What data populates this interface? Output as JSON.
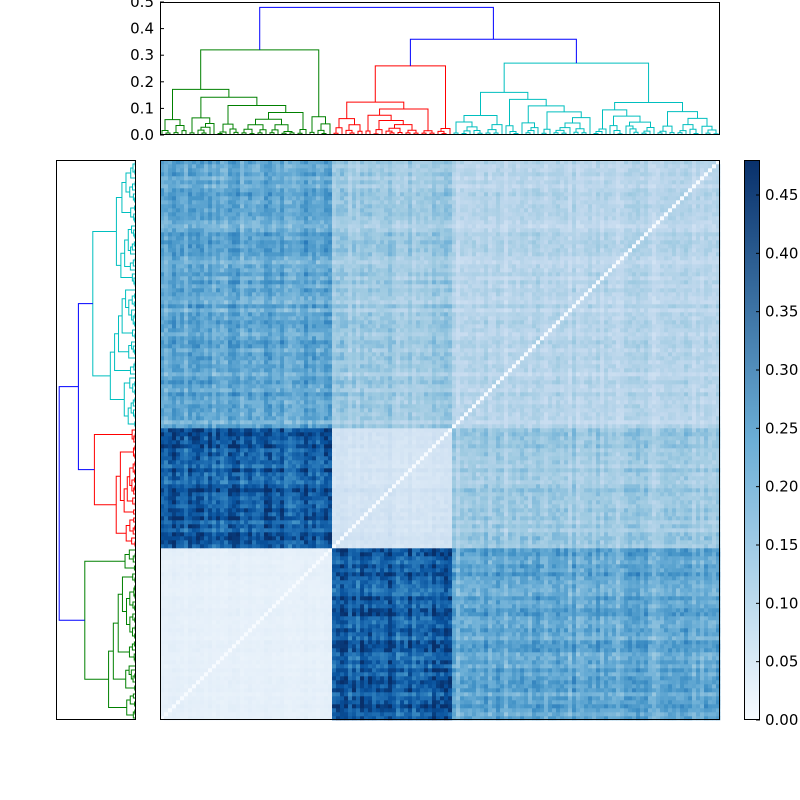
{
  "chart_data": {
    "type": "heatmap",
    "title": "",
    "xlabel": "",
    "ylabel": "",
    "matrix_size": 140,
    "clusters": [
      {
        "name": "green",
        "color": "#008000",
        "size": 43
      },
      {
        "name": "red",
        "color": "#ff0000",
        "size": 30
      },
      {
        "name": "cyan",
        "color": "#00bfbf",
        "size": 67
      }
    ],
    "block_means": [
      [
        0.04,
        0.4,
        0.25
      ],
      [
        0.4,
        0.09,
        0.18
      ],
      [
        0.25,
        0.18,
        0.14
      ]
    ],
    "dendrogram": {
      "link_color": "#0000ff",
      "cluster_heights": [
        0.32,
        0.26,
        0.27
      ],
      "upper_merge_heights": [
        0.36,
        0.48
      ],
      "ylim": [
        0,
        0.5
      ],
      "yticks": [
        "0.0",
        "0.1",
        "0.2",
        "0.3",
        "0.4",
        "0.5"
      ]
    },
    "colorbar": {
      "colormap": "Blues",
      "color_low": "#f7fbff",
      "color_high": "#08306b",
      "range": [
        0,
        0.48
      ],
      "ticks": [
        "0.00",
        "0.05",
        "0.10",
        "0.15",
        "0.20",
        "0.25",
        "0.30",
        "0.35",
        "0.40",
        "0.45"
      ]
    }
  }
}
